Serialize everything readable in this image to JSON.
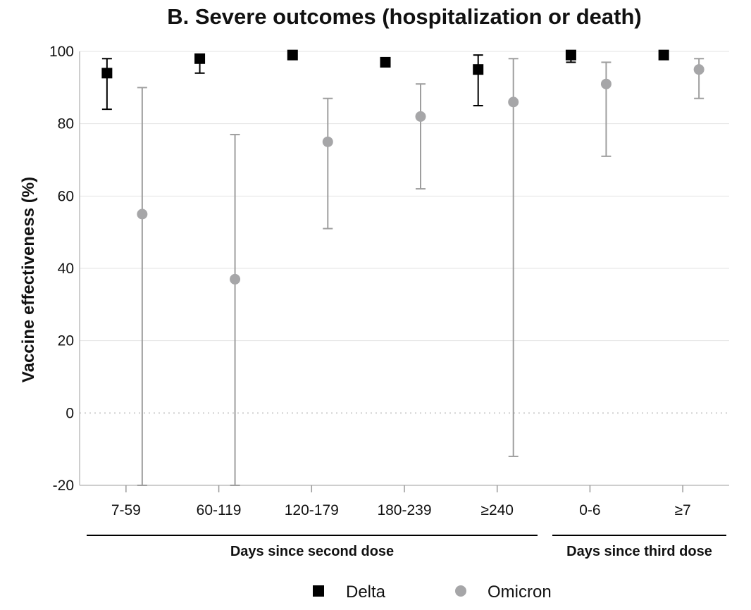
{
  "chart_data": {
    "type": "scatter",
    "title": "B. Severe outcomes (hospitalization or death)",
    "ylabel": "Vaccine effectiveness (%)",
    "ylim": [
      -20,
      100
    ],
    "yticks": [
      -20,
      0,
      20,
      40,
      60,
      80,
      100
    ],
    "categories": [
      "7-59",
      "60-119",
      "120-179",
      "180-239",
      "≥240",
      "0-6",
      "≥7"
    ],
    "groups": [
      {
        "label": "Days since second dose",
        "categories": [
          "7-59",
          "60-119",
          "120-179",
          "180-239",
          "≥240"
        ]
      },
      {
        "label": "Days since third dose",
        "categories": [
          "0-6",
          "≥7"
        ]
      }
    ],
    "grid": true,
    "legend_position": "bottom",
    "series": [
      {
        "name": "Delta",
        "marker": "square",
        "color": "#000000",
        "values": [
          94,
          98,
          99,
          97,
          95,
          99,
          99
        ],
        "ci_low": [
          84,
          94,
          null,
          null,
          85,
          97,
          null
        ],
        "ci_high": [
          98,
          99,
          null,
          null,
          99,
          99,
          null
        ]
      },
      {
        "name": "Omicron",
        "marker": "circle",
        "color": "#a6a6a8",
        "values": [
          55,
          37,
          75,
          82,
          86,
          91,
          95
        ],
        "ci_low": [
          -20,
          -20,
          51,
          62,
          -12,
          71,
          87
        ],
        "ci_high": [
          90,
          77,
          87,
          91,
          98,
          97,
          98
        ]
      }
    ]
  }
}
